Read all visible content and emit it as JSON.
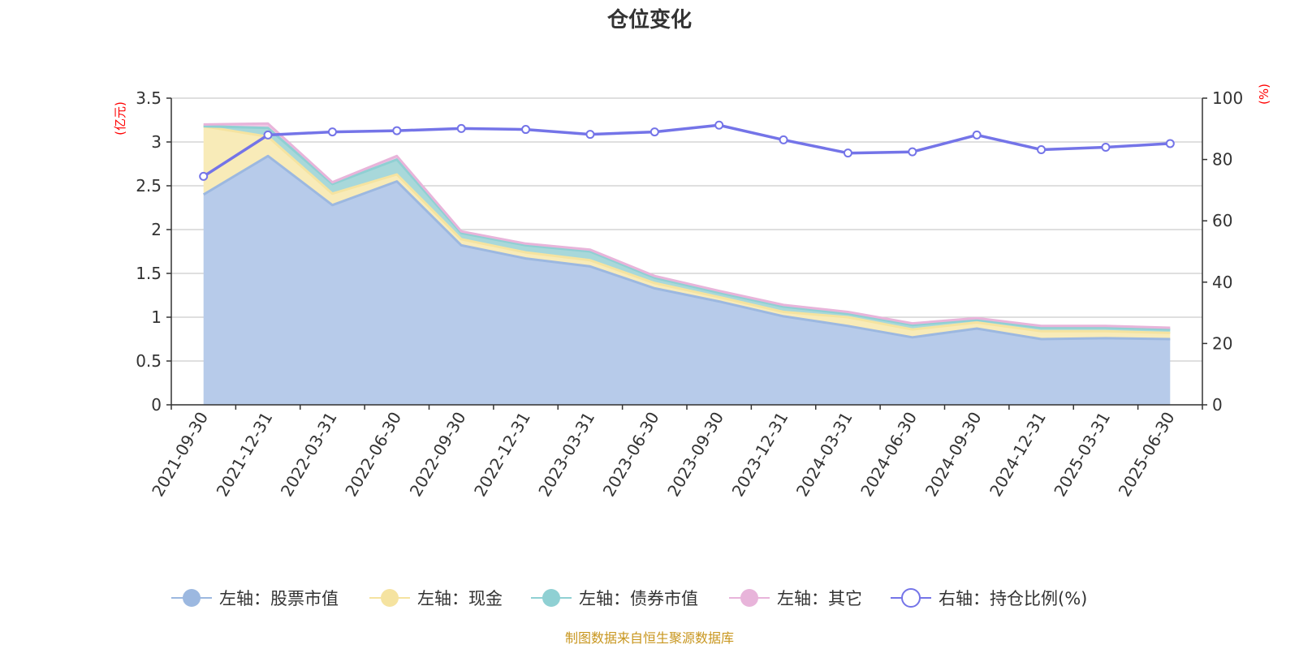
{
  "chart_data": {
    "type": "area",
    "title": "仓位变化",
    "source": "制图数据来自恒生聚源数据库",
    "left_unit": "(亿元)",
    "right_unit": "(%)",
    "left_axis": {
      "min": 0,
      "max": 3.5,
      "ticks": [
        "0",
        "0.5",
        "1",
        "1.5",
        "2",
        "2.5",
        "3",
        "3.5"
      ]
    },
    "right_axis": {
      "min": 0,
      "max": 100,
      "ticks": [
        "0",
        "20",
        "40",
        "60",
        "80",
        "100"
      ]
    },
    "categories": [
      "2021-09-30",
      "2021-12-31",
      "2022-03-31",
      "2022-06-30",
      "2022-09-30",
      "2022-12-31",
      "2023-03-31",
      "2023-06-30",
      "2023-09-30",
      "2023-12-31",
      "2024-03-31",
      "2024-06-30",
      "2024-09-30",
      "2024-12-31",
      "2025-03-31",
      "2025-06-30"
    ],
    "stacked_series": [
      {
        "name": "左轴：股票市值",
        "color": "#9cb8e0",
        "fill": "#b7cbea",
        "values": [
          2.4,
          2.84,
          2.28,
          2.55,
          1.82,
          1.67,
          1.58,
          1.33,
          1.18,
          1.01,
          0.9,
          0.77,
          0.87,
          0.75,
          0.76,
          0.75
        ]
      },
      {
        "name": "左轴：现金",
        "color": "#f5e3a0",
        "fill": "#f8ebb8",
        "values": [
          0.78,
          0.22,
          0.13,
          0.08,
          0.07,
          0.07,
          0.07,
          0.06,
          0.05,
          0.05,
          0.1,
          0.09,
          0.07,
          0.09,
          0.08,
          0.07
        ]
      },
      {
        "name": "左轴：债券市值",
        "color": "#8fd0d3",
        "fill": "#a8d8da",
        "values": [
          0.0,
          0.1,
          0.11,
          0.17,
          0.07,
          0.08,
          0.1,
          0.06,
          0.05,
          0.06,
          0.04,
          0.05,
          0.03,
          0.04,
          0.04,
          0.04
        ]
      },
      {
        "name": "左轴：其它",
        "color": "#e8b4da",
        "fill": "#efc7e5",
        "values": [
          0.02,
          0.05,
          0.02,
          0.04,
          0.02,
          0.02,
          0.02,
          0.02,
          0.02,
          0.02,
          0.02,
          0.02,
          0.02,
          0.02,
          0.02,
          0.02
        ]
      }
    ],
    "line_series": {
      "name": "右轴：持仓比例(%)",
      "color": "#7474e8",
      "values": [
        74.5,
        88.0,
        89.0,
        89.4,
        90.1,
        89.8,
        88.2,
        89.0,
        91.2,
        86.4,
        82.1,
        82.5,
        88.0,
        83.2,
        84.0,
        85.2
      ]
    }
  }
}
